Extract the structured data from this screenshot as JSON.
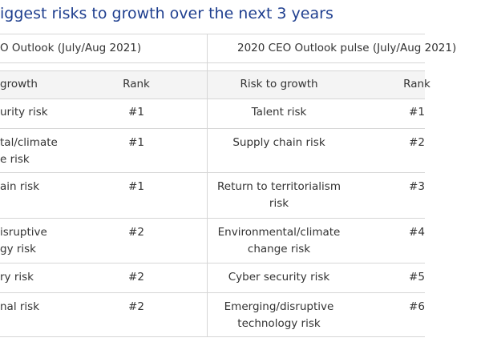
{
  "header": {
    "title": "iggest risks to growth over the next 3 years"
  },
  "table": {
    "groups": [
      "O Outlook (July/Aug 2021)",
      "2020 CEO Outlook pulse (July/Aug 2021)"
    ],
    "columns": [
      "growth",
      "Rank",
      "Risk to growth",
      "Rank"
    ],
    "rows": [
      [
        "urity risk",
        "#1",
        "Talent risk",
        "#1"
      ],
      [
        "tal/climate\ne risk",
        "#1",
        "Supply chain risk",
        "#2"
      ],
      [
        "ain risk",
        "#1",
        "Return to territorialism\nrisk",
        "#3"
      ],
      [
        "isruptive\ngy risk",
        "#2",
        "Environmental/climate\nchange risk",
        "#4"
      ],
      [
        "ry risk",
        "#2",
        "Cyber security risk",
        "#5"
      ],
      [
        "nal risk",
        "#2",
        "Emerging/disruptive\ntechnology risk",
        "#6"
      ]
    ]
  }
}
